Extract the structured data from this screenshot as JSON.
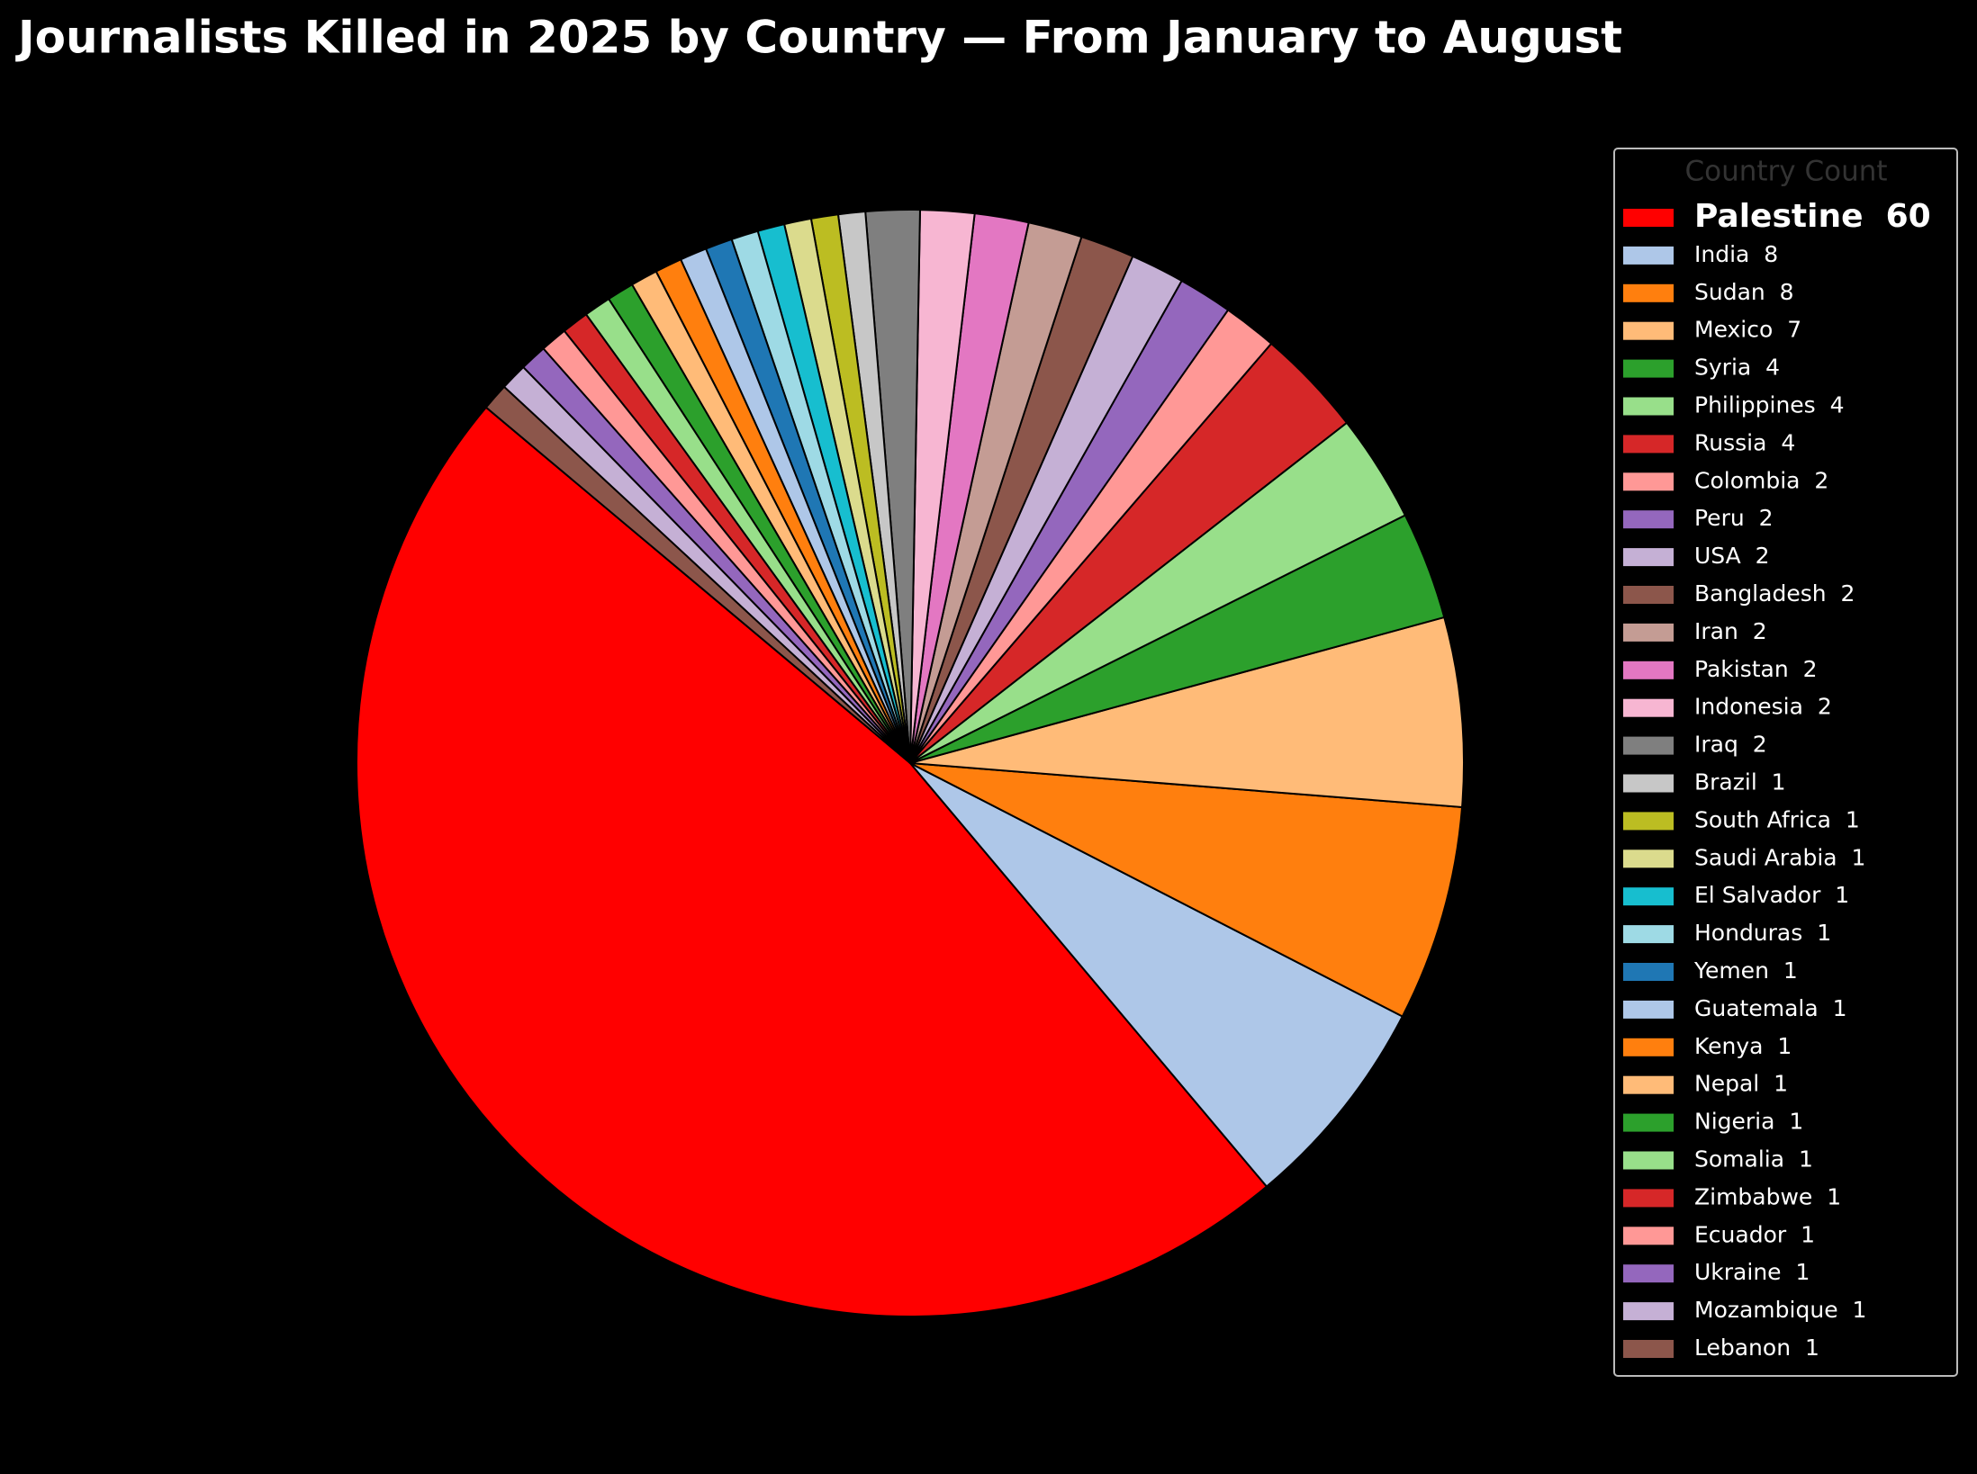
{
  "chart_data": {
    "type": "pie",
    "title": "Journalists Killed in 2025 by Country — From January to August",
    "legend_title": "Country   Count",
    "categories": [
      "Palestine",
      "India",
      "Sudan",
      "Mexico",
      "Syria",
      "Philippines",
      "Russia",
      "Colombia",
      "Peru",
      "USA",
      "Bangladesh",
      "Iran",
      "Pakistan",
      "Indonesia",
      "Iraq",
      "Brazil",
      "South Africa",
      "Saudi Arabia",
      "El Salvador",
      "Honduras",
      "Yemen",
      "Guatemala",
      "Kenya",
      "Nepal",
      "Nigeria",
      "Somalia",
      "Zimbabwe",
      "Ecuador",
      "Ukraine",
      "Mozambique",
      "Lebanon"
    ],
    "values": [
      60,
      8,
      8,
      7,
      4,
      4,
      4,
      2,
      2,
      2,
      2,
      2,
      2,
      2,
      2,
      1,
      1,
      1,
      1,
      1,
      1,
      1,
      1,
      1,
      1,
      1,
      1,
      1,
      1,
      1,
      1
    ],
    "colors": [
      "#ff0000",
      "#aec7e8",
      "#ff7f0e",
      "#ffbb78",
      "#2ca02c",
      "#98df8a",
      "#d62728",
      "#ff9896",
      "#9467bd",
      "#c5b0d5",
      "#8c564b",
      "#c49c94",
      "#e377c2",
      "#f7b6d2",
      "#7f7f7f",
      "#c7c7c7",
      "#bcbd22",
      "#dbdb8d",
      "#17becf",
      "#9edae5",
      "#1f77b4",
      "#aec7e8",
      "#ff7f0e",
      "#ffbb78",
      "#2ca02c",
      "#98df8a",
      "#d62728",
      "#ff9896",
      "#9467bd",
      "#c5b0d5",
      "#8c564b"
    ],
    "start_angle": 140,
    "highlight": "Palestine"
  }
}
